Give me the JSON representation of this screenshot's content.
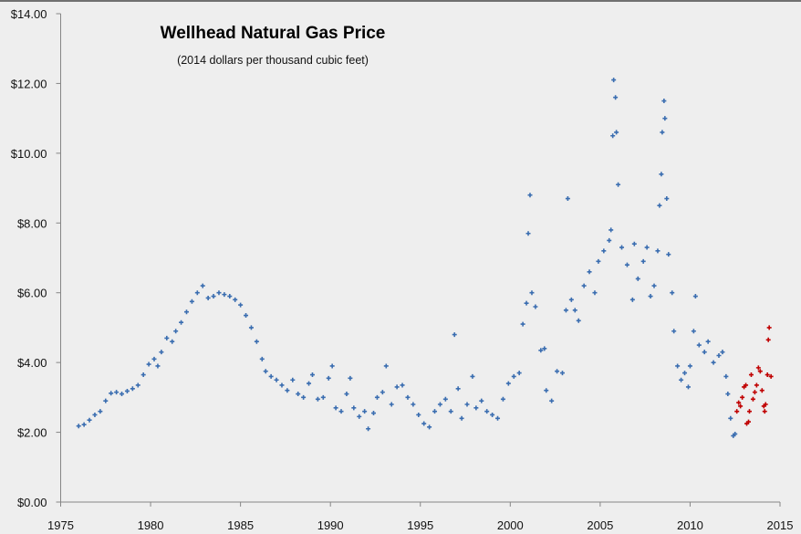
{
  "chart_data": {
    "type": "scatter",
    "title": "Wellhead Natural Gas Price",
    "subtitle": "(2014 dollars per thousand cubic feet)",
    "xlabel": "",
    "ylabel": "",
    "xlim": [
      1975,
      2015
    ],
    "ylim": [
      0,
      14
    ],
    "x_ticks": [
      "1975",
      "1980",
      "1985",
      "1990",
      "1995",
      "2000",
      "2005",
      "2010",
      "2015"
    ],
    "y_ticks": [
      "$0.00",
      "$2.00",
      "$4.00",
      "$6.00",
      "$8.00",
      "$10.00",
      "$12.00",
      "$14.00"
    ],
    "grid": false,
    "legend": "none",
    "series": [
      {
        "color": "#3a6db0",
        "marker": "plus",
        "points": [
          [
            1976.0,
            2.18
          ],
          [
            1976.3,
            2.22
          ],
          [
            1976.6,
            2.35
          ],
          [
            1976.9,
            2.5
          ],
          [
            1977.2,
            2.6
          ],
          [
            1977.5,
            2.9
          ],
          [
            1977.8,
            3.12
          ],
          [
            1978.1,
            3.15
          ],
          [
            1978.4,
            3.1
          ],
          [
            1978.7,
            3.18
          ],
          [
            1979.0,
            3.25
          ],
          [
            1979.3,
            3.35
          ],
          [
            1979.6,
            3.65
          ],
          [
            1979.9,
            3.95
          ],
          [
            1980.2,
            4.1
          ],
          [
            1980.4,
            3.9
          ],
          [
            1980.6,
            4.3
          ],
          [
            1980.9,
            4.7
          ],
          [
            1981.2,
            4.6
          ],
          [
            1981.4,
            4.9
          ],
          [
            1981.7,
            5.15
          ],
          [
            1982.0,
            5.45
          ],
          [
            1982.3,
            5.75
          ],
          [
            1982.6,
            6.0
          ],
          [
            1982.9,
            6.2
          ],
          [
            1983.2,
            5.85
          ],
          [
            1983.5,
            5.9
          ],
          [
            1983.8,
            6.0
          ],
          [
            1984.1,
            5.95
          ],
          [
            1984.4,
            5.9
          ],
          [
            1984.7,
            5.8
          ],
          [
            1985.0,
            5.65
          ],
          [
            1985.3,
            5.35
          ],
          [
            1985.6,
            5.0
          ],
          [
            1985.9,
            4.6
          ],
          [
            1986.2,
            4.1
          ],
          [
            1986.4,
            3.75
          ],
          [
            1986.7,
            3.6
          ],
          [
            1987.0,
            3.5
          ],
          [
            1987.3,
            3.35
          ],
          [
            1987.6,
            3.2
          ],
          [
            1987.9,
            3.5
          ],
          [
            1988.2,
            3.1
          ],
          [
            1988.5,
            3.0
          ],
          [
            1988.8,
            3.4
          ],
          [
            1989.0,
            3.65
          ],
          [
            1989.3,
            2.95
          ],
          [
            1989.6,
            3.0
          ],
          [
            1989.9,
            3.55
          ],
          [
            1990.1,
            3.9
          ],
          [
            1990.3,
            2.7
          ],
          [
            1990.6,
            2.6
          ],
          [
            1990.9,
            3.1
          ],
          [
            1991.1,
            3.55
          ],
          [
            1991.3,
            2.7
          ],
          [
            1991.6,
            2.45
          ],
          [
            1991.9,
            2.6
          ],
          [
            1992.1,
            2.1
          ],
          [
            1992.4,
            2.55
          ],
          [
            1992.6,
            3.0
          ],
          [
            1992.9,
            3.15
          ],
          [
            1993.1,
            3.9
          ],
          [
            1993.4,
            2.8
          ],
          [
            1993.7,
            3.3
          ],
          [
            1994.0,
            3.35
          ],
          [
            1994.3,
            3.0
          ],
          [
            1994.6,
            2.8
          ],
          [
            1994.9,
            2.5
          ],
          [
            1995.2,
            2.25
          ],
          [
            1995.5,
            2.15
          ],
          [
            1995.8,
            2.6
          ],
          [
            1996.1,
            2.8
          ],
          [
            1996.4,
            2.95
          ],
          [
            1996.7,
            2.6
          ],
          [
            1996.9,
            4.8
          ],
          [
            1997.1,
            3.25
          ],
          [
            1997.3,
            2.4
          ],
          [
            1997.6,
            2.8
          ],
          [
            1997.9,
            3.6
          ],
          [
            1998.1,
            2.7
          ],
          [
            1998.4,
            2.9
          ],
          [
            1998.7,
            2.6
          ],
          [
            1999.0,
            2.5
          ],
          [
            1999.3,
            2.4
          ],
          [
            1999.6,
            2.95
          ],
          [
            1999.9,
            3.4
          ],
          [
            2000.2,
            3.6
          ],
          [
            2000.5,
            3.7
          ],
          [
            2000.7,
            5.1
          ],
          [
            2000.9,
            5.7
          ],
          [
            2001.0,
            7.7
          ],
          [
            2001.1,
            8.8
          ],
          [
            2001.2,
            6.0
          ],
          [
            2001.4,
            5.6
          ],
          [
            2001.7,
            4.35
          ],
          [
            2001.9,
            4.4
          ],
          [
            2002.0,
            3.2
          ],
          [
            2002.3,
            2.9
          ],
          [
            2002.6,
            3.75
          ],
          [
            2002.9,
            3.7
          ],
          [
            2003.1,
            5.5
          ],
          [
            2003.2,
            8.7
          ],
          [
            2003.4,
            5.8
          ],
          [
            2003.6,
            5.5
          ],
          [
            2003.8,
            5.2
          ],
          [
            2004.1,
            6.2
          ],
          [
            2004.4,
            6.6
          ],
          [
            2004.7,
            6.0
          ],
          [
            2004.9,
            6.9
          ],
          [
            2005.2,
            7.2
          ],
          [
            2005.5,
            7.5
          ],
          [
            2005.6,
            7.8
          ],
          [
            2005.7,
            10.5
          ],
          [
            2005.75,
            12.1
          ],
          [
            2005.85,
            11.6
          ],
          [
            2005.9,
            10.6
          ],
          [
            2006.0,
            9.1
          ],
          [
            2006.2,
            7.3
          ],
          [
            2006.5,
            6.8
          ],
          [
            2006.8,
            5.8
          ],
          [
            2006.9,
            7.4
          ],
          [
            2007.1,
            6.4
          ],
          [
            2007.4,
            6.9
          ],
          [
            2007.6,
            7.3
          ],
          [
            2007.8,
            5.9
          ],
          [
            2008.0,
            6.2
          ],
          [
            2008.2,
            7.2
          ],
          [
            2008.3,
            8.5
          ],
          [
            2008.4,
            9.4
          ],
          [
            2008.45,
            10.6
          ],
          [
            2008.55,
            11.5
          ],
          [
            2008.6,
            11.0
          ],
          [
            2008.7,
            8.7
          ],
          [
            2008.8,
            7.1
          ],
          [
            2009.0,
            6.0
          ],
          [
            2009.1,
            4.9
          ],
          [
            2009.3,
            3.9
          ],
          [
            2009.5,
            3.5
          ],
          [
            2009.7,
            3.7
          ],
          [
            2009.9,
            3.3
          ],
          [
            2010.0,
            3.9
          ],
          [
            2010.2,
            4.9
          ],
          [
            2010.3,
            5.9
          ],
          [
            2010.5,
            4.5
          ],
          [
            2010.8,
            4.3
          ],
          [
            2011.0,
            4.6
          ],
          [
            2011.3,
            4.0
          ],
          [
            2011.6,
            4.2
          ],
          [
            2011.8,
            4.3
          ],
          [
            2012.0,
            3.6
          ],
          [
            2012.1,
            3.1
          ],
          [
            2012.25,
            2.4
          ],
          [
            2012.4,
            1.9
          ],
          [
            2012.5,
            1.95
          ]
        ]
      },
      {
        "color": "#c00000",
        "marker": "plus",
        "points": [
          [
            2012.6,
            2.6
          ],
          [
            2012.7,
            2.85
          ],
          [
            2012.8,
            2.75
          ],
          [
            2012.9,
            3.0
          ],
          [
            2013.0,
            3.3
          ],
          [
            2013.1,
            3.35
          ],
          [
            2013.15,
            2.25
          ],
          [
            2013.25,
            2.3
          ],
          [
            2013.3,
            2.6
          ],
          [
            2013.4,
            3.65
          ],
          [
            2013.5,
            2.95
          ],
          [
            2013.6,
            3.15
          ],
          [
            2013.7,
            3.35
          ],
          [
            2013.8,
            3.85
          ],
          [
            2013.9,
            3.75
          ],
          [
            2014.0,
            3.2
          ],
          [
            2014.1,
            2.75
          ],
          [
            2014.15,
            2.6
          ],
          [
            2014.2,
            2.8
          ],
          [
            2014.3,
            3.65
          ],
          [
            2014.35,
            4.65
          ],
          [
            2014.4,
            5.0
          ],
          [
            2014.5,
            3.6
          ]
        ]
      }
    ]
  }
}
